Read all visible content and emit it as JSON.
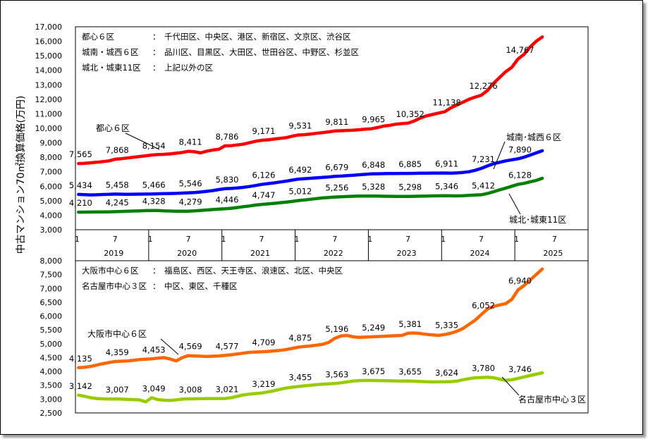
{
  "page": {
    "ylabel": "中古マンション70㎡換算価格(万円)"
  },
  "x_axis": {
    "years": [
      "2019",
      "2020",
      "2021",
      "2022",
      "2023",
      "2024",
      "2025"
    ],
    "months": [
      "1",
      "7"
    ]
  },
  "chart_data": [
    {
      "type": "line",
      "ylim": [
        3000,
        17000
      ],
      "yticks": [
        "3,000",
        "4,000",
        "5,000",
        "6,000",
        "7,000",
        "8,000",
        "9,000",
        "10,000",
        "11,000",
        "12,000",
        "13,000",
        "14,000",
        "15,000",
        "16,000",
        "17,000"
      ],
      "legend": [
        {
          "name": "都心６区",
          "sep": "：",
          "desc": "千代田区、中央区、港区、新宿区、文京区、渋谷区"
        },
        {
          "name": "城南・城西６区",
          "sep": "：",
          "desc": "品川区、目黒区、大田区、世田谷区、中野区、杉並区"
        },
        {
          "name": "城北・城東11区",
          "sep": "：",
          "desc": "上記以外の区"
        }
      ],
      "series": [
        {
          "name": "都心６区",
          "color": "#ff0000",
          "values": [
            7565,
            7580,
            7620,
            7650,
            7700,
            7750,
            7868,
            7900,
            7950,
            8000,
            8050,
            8100,
            8154,
            8180,
            8200,
            8230,
            8280,
            8330,
            8411,
            8380,
            8300,
            8420,
            8500,
            8550,
            8786,
            8800,
            8850,
            8900,
            9000,
            9100,
            9171,
            9200,
            9250,
            9300,
            9350,
            9450,
            9531,
            9560,
            9600,
            9650,
            9700,
            9750,
            9811,
            9830,
            9850,
            9870,
            9900,
            9940,
            9965,
            10050,
            10150,
            10200,
            10280,
            10320,
            10352,
            10500,
            10700,
            10850,
            10950,
            11050,
            11138,
            11400,
            11600,
            11800,
            12000,
            12150,
            12276,
            12600,
            13100,
            13500,
            13900,
            14200,
            14767,
            15100,
            15600,
            16000,
            16300
          ],
          "labels": [
            {
              "i": 0,
              "text": "7,565"
            },
            {
              "i": 6,
              "text": "7,868"
            },
            {
              "i": 12,
              "text": "8,154"
            },
            {
              "i": 18,
              "text": "8,411"
            },
            {
              "i": 24,
              "text": "8,786"
            },
            {
              "i": 30,
              "text": "9,171"
            },
            {
              "i": 36,
              "text": "9,531"
            },
            {
              "i": 42,
              "text": "9,811"
            },
            {
              "i": 48,
              "text": "9,965"
            },
            {
              "i": 54,
              "text": "10,352"
            },
            {
              "i": 60,
              "text": "11,138"
            },
            {
              "i": 66,
              "text": "12,276"
            },
            {
              "i": 72,
              "text": "14,767"
            }
          ],
          "annotation": "都心６区"
        },
        {
          "name": "城南・城西６区",
          "color": "#0000ff",
          "values": [
            5434,
            5420,
            5400,
            5410,
            5430,
            5440,
            5458,
            5450,
            5440,
            5450,
            5455,
            5460,
            5466,
            5480,
            5490,
            5500,
            5510,
            5530,
            5546,
            5560,
            5600,
            5650,
            5700,
            5770,
            5830,
            5850,
            5880,
            5920,
            5980,
            6050,
            6126,
            6180,
            6230,
            6290,
            6350,
            6420,
            6492,
            6520,
            6550,
            6580,
            6610,
            6640,
            6679,
            6700,
            6730,
            6760,
            6790,
            6820,
            6848,
            6860,
            6870,
            6880,
            6880,
            6885,
            6885,
            6890,
            6900,
            6905,
            6910,
            6910,
            6911,
            6900,
            6920,
            6950,
            7000,
            7100,
            7231,
            7400,
            7550,
            7650,
            7750,
            7820,
            7890,
            8000,
            8150,
            8300,
            8450
          ],
          "labels": [
            {
              "i": 0,
              "text": "5,434"
            },
            {
              "i": 6,
              "text": "5,458"
            },
            {
              "i": 12,
              "text": "5,466"
            },
            {
              "i": 18,
              "text": "5,546"
            },
            {
              "i": 24,
              "text": "5,830"
            },
            {
              "i": 30,
              "text": "6,126"
            },
            {
              "i": 36,
              "text": "6,492"
            },
            {
              "i": 42,
              "text": "6,679"
            },
            {
              "i": 48,
              "text": "6,848"
            },
            {
              "i": 54,
              "text": "6,885"
            },
            {
              "i": 60,
              "text": "6,911"
            },
            {
              "i": 66,
              "text": "7,231"
            },
            {
              "i": 72,
              "text": "7,890"
            }
          ],
          "annotation": "城南･城西６区"
        },
        {
          "name": "城北・城東11区",
          "color": "#008000",
          "values": [
            4210,
            4215,
            4220,
            4225,
            4230,
            4235,
            4245,
            4260,
            4275,
            4290,
            4300,
            4315,
            4328,
            4320,
            4300,
            4290,
            4280,
            4280,
            4279,
            4300,
            4330,
            4360,
            4390,
            4420,
            4446,
            4480,
            4530,
            4590,
            4640,
            4700,
            4747,
            4780,
            4820,
            4860,
            4900,
            4950,
            5012,
            5050,
            5100,
            5150,
            5190,
            5220,
            5256,
            5270,
            5290,
            5310,
            5320,
            5325,
            5328,
            5320,
            5310,
            5305,
            5300,
            5300,
            5298,
            5305,
            5315,
            5325,
            5335,
            5340,
            5346,
            5340,
            5335,
            5350,
            5370,
            5390,
            5412,
            5500,
            5620,
            5750,
            5870,
            6000,
            6128,
            6200,
            6300,
            6400,
            6550
          ],
          "labels": [
            {
              "i": 0,
              "text": "4,210"
            },
            {
              "i": 6,
              "text": "4,245"
            },
            {
              "i": 12,
              "text": "4,328"
            },
            {
              "i": 18,
              "text": "4,279"
            },
            {
              "i": 24,
              "text": "4,446"
            },
            {
              "i": 30,
              "text": "4,747"
            },
            {
              "i": 36,
              "text": "5,012"
            },
            {
              "i": 42,
              "text": "5,256"
            },
            {
              "i": 48,
              "text": "5,328"
            },
            {
              "i": 54,
              "text": "5,298"
            },
            {
              "i": 60,
              "text": "5,346"
            },
            {
              "i": 66,
              "text": "5,412"
            },
            {
              "i": 72,
              "text": "6,128"
            }
          ],
          "annotation": "城北･城東11区"
        }
      ]
    },
    {
      "type": "line",
      "ylim": [
        2500,
        8000
      ],
      "yticks": [
        "2,500",
        "3,000",
        "3,500",
        "4,000",
        "4,500",
        "5,000",
        "5,500",
        "6,000",
        "6,500",
        "7,000",
        "7,500",
        "8,000"
      ],
      "legend": [
        {
          "name": "大阪市中心６区",
          "sep": "：",
          "desc": "福島区、西区、天王寺区、浪速区、北区、中央区"
        },
        {
          "name": "名古屋市中心３区",
          "sep": "：",
          "desc": "中区、東区、千種区"
        }
      ],
      "series": [
        {
          "name": "大阪市中心６区",
          "color": "#ff6600",
          "values": [
            4135,
            4150,
            4180,
            4230,
            4280,
            4320,
            4359,
            4370,
            4380,
            4400,
            4430,
            4440,
            4453,
            4480,
            4500,
            4450,
            4380,
            4500,
            4569,
            4560,
            4550,
            4540,
            4550,
            4560,
            4577,
            4600,
            4630,
            4660,
            4690,
            4700,
            4709,
            4720,
            4740,
            4760,
            4790,
            4830,
            4875,
            4900,
            4920,
            4950,
            4980,
            5050,
            5196,
            5280,
            5300,
            5250,
            5230,
            5240,
            5249,
            5260,
            5270,
            5280,
            5290,
            5300,
            5381,
            5390,
            5370,
            5340,
            5320,
            5300,
            5335,
            5380,
            5450,
            5550,
            5700,
            5850,
            6052,
            6250,
            6350,
            6400,
            6450,
            6600,
            6940,
            7100,
            7300,
            7500,
            7700
          ],
          "labels": [
            {
              "i": 0,
              "text": "4,135"
            },
            {
              "i": 6,
              "text": "4,359"
            },
            {
              "i": 12,
              "text": "4,453"
            },
            {
              "i": 18,
              "text": "4,569"
            },
            {
              "i": 24,
              "text": "4,577"
            },
            {
              "i": 30,
              "text": "4,709"
            },
            {
              "i": 36,
              "text": "4,875"
            },
            {
              "i": 42,
              "text": "5,196"
            },
            {
              "i": 48,
              "text": "5,249"
            },
            {
              "i": 54,
              "text": "5,381"
            },
            {
              "i": 60,
              "text": "5,335"
            },
            {
              "i": 66,
              "text": "6,052"
            },
            {
              "i": 72,
              "text": "6,940"
            }
          ],
          "annotation": "大阪市中心６区"
        },
        {
          "name": "名古屋市中心３区",
          "color": "#99cc00",
          "values": [
            3142,
            3100,
            3050,
            3020,
            3010,
            3005,
            3007,
            3000,
            2990,
            2980,
            2970,
            2900,
            3049,
            2980,
            2960,
            2950,
            2970,
            3000,
            3008,
            3010,
            3015,
            3020,
            3020,
            3020,
            3021,
            3050,
            3100,
            3150,
            3180,
            3200,
            3219,
            3260,
            3300,
            3350,
            3400,
            3430,
            3455,
            3480,
            3500,
            3520,
            3540,
            3550,
            3563,
            3590,
            3620,
            3650,
            3670,
            3675,
            3675,
            3670,
            3665,
            3660,
            3655,
            3650,
            3655,
            3645,
            3635,
            3625,
            3620,
            3622,
            3624,
            3630,
            3650,
            3700,
            3740,
            3770,
            3780,
            3790,
            3770,
            3720,
            3680,
            3700,
            3746,
            3800,
            3850,
            3900,
            3950
          ],
          "labels": [
            {
              "i": 0,
              "text": "3,142"
            },
            {
              "i": 6,
              "text": "3,007"
            },
            {
              "i": 12,
              "text": "3,049"
            },
            {
              "i": 18,
              "text": "3,008"
            },
            {
              "i": 24,
              "text": "3,021"
            },
            {
              "i": 30,
              "text": "3,219"
            },
            {
              "i": 36,
              "text": "3,455"
            },
            {
              "i": 42,
              "text": "3,563"
            },
            {
              "i": 48,
              "text": "3,675"
            },
            {
              "i": 54,
              "text": "3,655"
            },
            {
              "i": 60,
              "text": "3,624"
            },
            {
              "i": 66,
              "text": "3,780"
            },
            {
              "i": 72,
              "text": "3,746"
            }
          ],
          "annotation": "名古屋市中心３区"
        }
      ]
    }
  ]
}
